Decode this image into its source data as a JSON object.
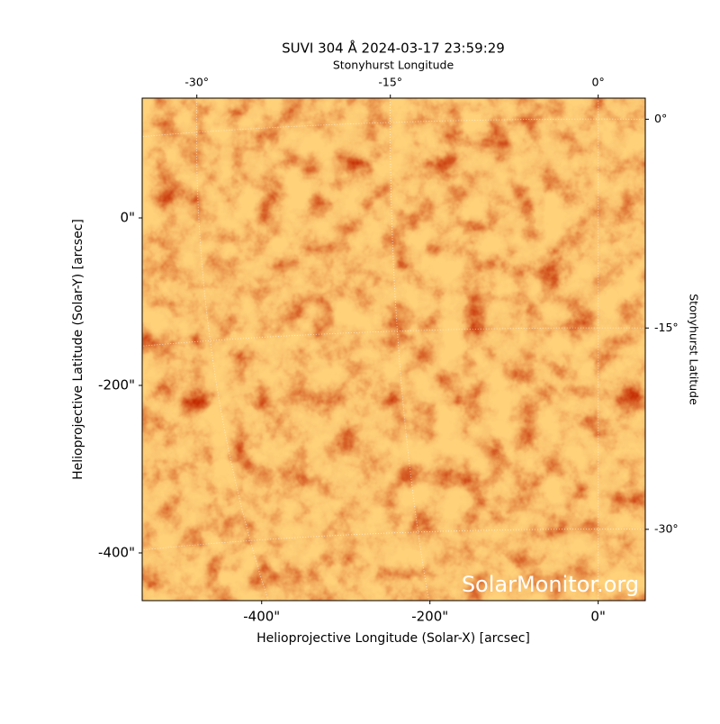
{
  "chart_data": {
    "type": "image",
    "title": "SUVI 304 Å 2024-03-17 23:59:29",
    "xlabel": "Helioprojective Longitude (Solar-X) [arcsec]",
    "ylabel": "Helioprojective Latitude (Solar-Y) [arcsec]",
    "x2label": "Stonyhurst Longitude",
    "y2label": "Stonyhurst Latitude",
    "watermark": "SolarMonitor.org",
    "xlim": [
      -542,
      56
    ],
    "ylim": [
      -457,
      143
    ],
    "xticks": [
      {
        "value": -400,
        "label": "-400\""
      },
      {
        "value": -200,
        "label": "-200\""
      },
      {
        "value": 0,
        "label": "0\""
      }
    ],
    "yticks": [
      {
        "value": -400,
        "label": "-400\""
      },
      {
        "value": -200,
        "label": "-200\""
      },
      {
        "value": 0,
        "label": "0\""
      }
    ],
    "lon_ticks": [
      {
        "value": -30,
        "label": "-30°"
      },
      {
        "value": -15,
        "label": "-15°"
      },
      {
        "value": 0,
        "label": "0°"
      }
    ],
    "lat_ticks": [
      {
        "value": 0,
        "label": "0°"
      },
      {
        "value": -15,
        "label": "-15°"
      },
      {
        "value": -30,
        "label": "-30°"
      }
    ]
  }
}
